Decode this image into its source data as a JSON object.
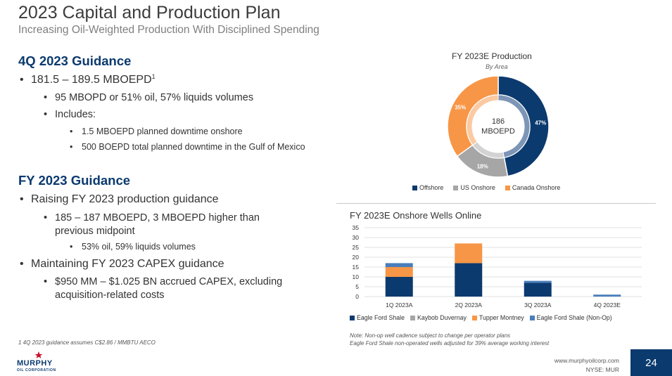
{
  "header": {
    "title": "2023 Capital and Production Plan",
    "subtitle": "Increasing Oil-Weighted Production With Disciplined Spending"
  },
  "guidance_q4": {
    "heading": "4Q 2023 Guidance",
    "l1": "181.5 – 189.5 MBOEPD",
    "l1_sup": "1",
    "l2a": "95 MBOPD or 51% oil, 57% liquids volumes",
    "l2b": "Includes:",
    "l3a": "1.5 MBOEPD planned downtime onshore",
    "l3b": "500 BOEPD total planned downtime in the Gulf of Mexico"
  },
  "guidance_fy": {
    "heading": "FY 2023 Guidance",
    "l1a": "Raising FY 2023 production guidance",
    "l2a": "185 – 187 MBOEPD, 3 MBOEPD higher than previous midpoint",
    "l3a": "53% oil, 59% liquids volumes",
    "l1b": "Maintaining FY 2023 CAPEX guidance",
    "l2b": "$950 MM – $1.025 BN accrued CAPEX, excluding acquisition-related costs"
  },
  "footnote": "1 4Q 2023 guidance assumes C$2.86 / MMBTU AECO",
  "chart_data": [
    {
      "type": "pie",
      "title": "FY 2023E Production",
      "subtitle": "By Area",
      "center_label_1": "186",
      "center_label_2": "MBOEPD",
      "categories": [
        "Offshore",
        "US Onshore",
        "Canada Onshore"
      ],
      "values": [
        47,
        18,
        35
      ],
      "labels": [
        "47%",
        "18%",
        "35%"
      ],
      "colors": [
        "#0b3a6e",
        "#a6a6a6",
        "#f79646"
      ]
    },
    {
      "type": "bar",
      "stacked": true,
      "title": "FY 2023E Onshore Wells Online",
      "categories": [
        "1Q 2023A",
        "2Q 2023A",
        "3Q 2023A",
        "4Q 2023E"
      ],
      "series": [
        {
          "name": "Eagle Ford Shale",
          "values": [
            10,
            17,
            7,
            0
          ],
          "color": "#0b3a6e"
        },
        {
          "name": "Kaybob Duvernay",
          "values": [
            0,
            0,
            0,
            0
          ],
          "color": "#a6a6a6"
        },
        {
          "name": "Tupper Montney",
          "values": [
            5,
            10,
            0,
            0
          ],
          "color": "#f79646"
        },
        {
          "name": "Eagle Ford Shale (Non-Op)",
          "values": [
            2,
            0,
            1,
            1
          ],
          "color": "#4a7ebb"
        }
      ],
      "ylim": [
        0,
        35
      ],
      "yticks": [
        0,
        5,
        10,
        15,
        20,
        25,
        30,
        35
      ]
    }
  ],
  "note": {
    "line1": "Note: Non-op well cadence subject to change per operator plans",
    "line2": "Eagle Ford Shale non-operated wells adjusted for 39% average working interest"
  },
  "footer": {
    "logo_name": "MURPHY",
    "logo_sub": "OIL CORPORATION",
    "website": "www.murphyoilcorp.com",
    "ticker": "NYSE: MUR",
    "page": "24"
  }
}
